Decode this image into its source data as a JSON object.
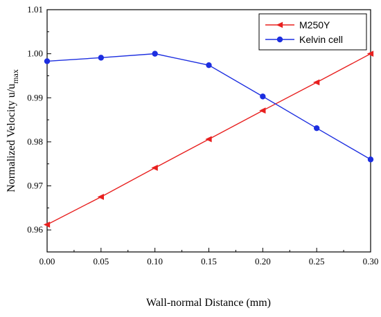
{
  "chart_data": {
    "type": "line",
    "xlabel": "Wall-normal Distance (mm)",
    "ylabel": "Normalized Velocity u/u",
    "ylabel_sub": "max",
    "xlim": [
      0.0,
      0.3
    ],
    "ylim": [
      0.955,
      1.01
    ],
    "x_ticks": [
      "0.00",
      "0.05",
      "0.10",
      "0.15",
      "0.20",
      "0.25",
      "0.30"
    ],
    "y_ticks": [
      "0.96",
      "0.97",
      "0.98",
      "0.99",
      "1.00",
      "1.01"
    ],
    "legend_position": "top-right",
    "grid": false,
    "x": [
      0.0,
      0.05,
      0.1,
      0.15,
      0.2,
      0.25,
      0.3
    ],
    "series": [
      {
        "name": "M250Y",
        "color": "#e8201f",
        "marker": "left-triangle",
        "values": [
          0.9612,
          0.9675,
          0.9741,
          0.9806,
          0.9871,
          0.9935,
          1.0
        ]
      },
      {
        "name": "Kelvin cell",
        "color": "#1c2ee0",
        "marker": "circle",
        "values": [
          0.9983,
          0.9991,
          1.0,
          0.9974,
          0.9903,
          0.9831,
          0.976
        ]
      }
    ]
  }
}
